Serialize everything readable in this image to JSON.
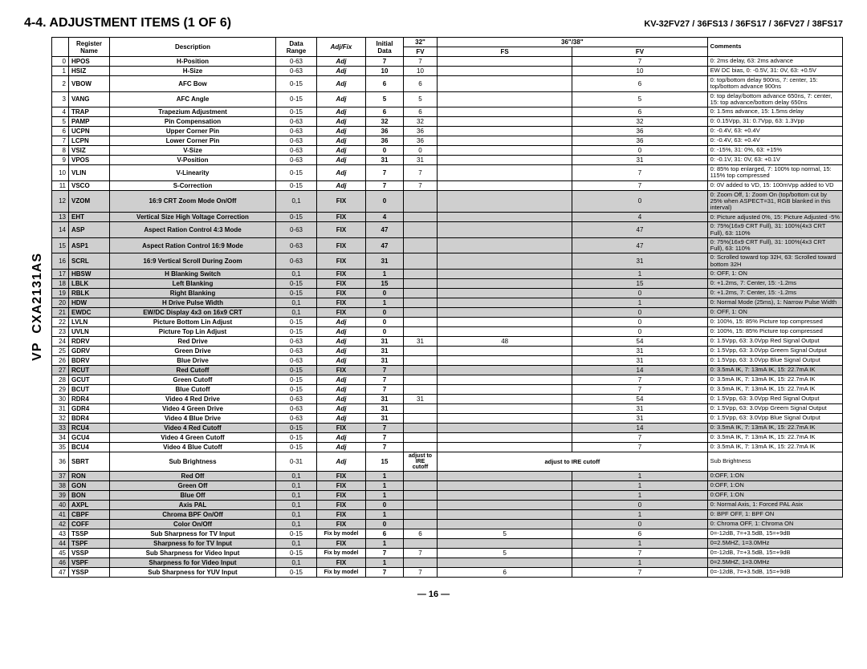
{
  "header": {
    "title": "4-4. ADJUSTMENT ITEMS (1 OF 6)",
    "models": "KV-32FV27 / 36FS13 / 36FS17 / 36FV27 / 38FS17"
  },
  "chip": {
    "top": "VP",
    "bottom": "CXA2131AS"
  },
  "columns": {
    "register": "Register Name",
    "description": "Description",
    "data_range": "Data Range",
    "adjfix": "Adj/Fix",
    "initial": "Initial Data",
    "c32": "32\"",
    "c3638": "36\"/38\"",
    "fv": "FV",
    "fs": "FS",
    "fv2": "FV",
    "comments": "Comments"
  },
  "rows": [
    {
      "i": "0",
      "r": "HPOS",
      "d": "H-Position",
      "rg": "0-63",
      "af": "Adj",
      "in": "7",
      "a": "7",
      "b": "",
      "c": "7",
      "cm": "0:  2ms delay,   63:  2ms advance"
    },
    {
      "i": "1",
      "r": "HSIZ",
      "d": "H-Size",
      "rg": "0-63",
      "af": "Adj",
      "in": "10",
      "a": "10",
      "b": "",
      "c": "10",
      "cm": "EW DC bias,  0:  -0.5V,   31:  0V,   63:  +0.5V"
    },
    {
      "i": "2",
      "r": "VBOW",
      "d": "AFC Bow",
      "rg": "0-15",
      "af": "Adj",
      "in": "6",
      "a": "6",
      "b": "",
      "c": "6",
      "cm": "0:  top/bottom delay 900ns,  7:  center,   15:  top/bottom advance 900ns"
    },
    {
      "i": "3",
      "r": "VANG",
      "d": "AFC Angle",
      "rg": "0-15",
      "af": "Adj",
      "in": "5",
      "a": "5",
      "b": "",
      "c": "5",
      "cm": "0:  top delay/bottom advance 650ns,   7: center,\n15:  top advance/bottom delay 650ns"
    },
    {
      "i": "4",
      "r": "TRAP",
      "d": "Trapezium Adjustment",
      "rg": "0-15",
      "af": "Adj",
      "in": "6",
      "a": "6",
      "b": "",
      "c": "6",
      "cm": "0:  1.5ms advance,  15:  1.5ms delay"
    },
    {
      "i": "5",
      "r": "PAMP",
      "d": "Pin Compensation",
      "rg": "0-63",
      "af": "Adj",
      "in": "32",
      "a": "32",
      "b": "",
      "c": "32",
      "cm": "0:  0.15Vpp,  31:  0.7Vpp,  63:  1.3Vpp"
    },
    {
      "i": "6",
      "r": "UCPN",
      "d": "Upper Corner Pin",
      "rg": "0-63",
      "af": "Adj",
      "in": "36",
      "a": "36",
      "b": "",
      "c": "36",
      "cm": "0:  -0.4V,  63:  +0.4V"
    },
    {
      "i": "7",
      "r": "LCPN",
      "d": "Lower Corner Pin",
      "rg": "0-63",
      "af": "Adj",
      "in": "36",
      "a": "36",
      "b": "",
      "c": "36",
      "cm": "0:  -0.4V,  63:  +0.4V"
    },
    {
      "i": "8",
      "r": "VSIZ",
      "d": "V-Size",
      "rg": "0-63",
      "af": "Adj",
      "in": "0",
      "a": "0",
      "b": "",
      "c": "0",
      "cm": "0:  -15%,   31:  0%,   63:  +15%"
    },
    {
      "i": "9",
      "r": "VPOS",
      "d": "V-Position",
      "rg": "0-63",
      "af": "Adj",
      "in": "31",
      "a": "31",
      "b": "",
      "c": "31",
      "cm": "0:  -0.1V,  31:  0V,  63:  +0.1V"
    },
    {
      "i": "10",
      "r": "VLIN",
      "d": "V-Linearity",
      "rg": "0-15",
      "af": "Adj",
      "in": "7",
      "a": "7",
      "b": "",
      "c": "7",
      "cm": "0:  85% top enlarged,  7:  100% top normal,  15:  115% top compressed"
    },
    {
      "i": "11",
      "r": "VSCO",
      "d": "S-Correction",
      "rg": "0-15",
      "af": "Adj",
      "in": "7",
      "a": "7",
      "b": "",
      "c": "7",
      "cm": "0:  0V added to VD,  15:   100mVpp added to VD"
    },
    {
      "i": "12",
      "r": "VZOM",
      "d": "16:9 CRT Zoom Mode On/Off",
      "rg": "0,1",
      "af": "FIX",
      "in": "0",
      "a": "",
      "b": "",
      "c": "0",
      "cm": "0:  Zoom Off,  1:  Zoom On\n(top/bottom cut by 25% when ASPECT=31, RGB blanked in this interval)",
      "sh": true
    },
    {
      "i": "13",
      "r": "EHT",
      "d": "Vertical Size High Voltage Correction",
      "rg": "0-15",
      "af": "FIX",
      "in": "4",
      "a": "",
      "b": "",
      "c": "4",
      "cm": "0:  Picture adjusted 0%,   15:  Picture Adjusted -5%",
      "sh": true
    },
    {
      "i": "14",
      "r": "ASP",
      "d": "Aspect Ration Control 4:3 Mode",
      "rg": "0-63",
      "af": "FIX",
      "in": "47",
      "a": "",
      "b": "",
      "c": "47",
      "cm": "0:  75%(16x9 CRT Full),  31:  100%(4x3 CRT Full),  63:  110%",
      "sh": true
    },
    {
      "i": "15",
      "r": "ASP1",
      "d": "Aspect Ration Control 16:9 Mode",
      "rg": "0-63",
      "af": "FIX",
      "in": "47",
      "a": "",
      "b": "",
      "c": "47",
      "cm": "0:  75%(16x9 CRT Full),  31:  100%(4x3 CRT Full),  63:  110%",
      "sh": true
    },
    {
      "i": "16",
      "r": "SCRL",
      "d": "16:9 Vertical Scroll During Zoom",
      "rg": "0-63",
      "af": "FIX",
      "in": "31",
      "a": "",
      "b": "",
      "c": "31",
      "cm": "0:  Scrolled toward top 32H,  63:  Scrolled toward bottom 32H",
      "sh": true
    },
    {
      "i": "17",
      "r": "HBSW",
      "d": "H Blanking Switch",
      "rg": "0,1",
      "af": "FIX",
      "in": "1",
      "a": "",
      "b": "",
      "c": "1",
      "cm": "0:  OFF,  1:  ON",
      "sh": true
    },
    {
      "i": "18",
      "r": "LBLK",
      "d": "Left Blanking",
      "rg": "0-15",
      "af": "FIX",
      "in": "15",
      "a": "",
      "b": "",
      "c": "15",
      "cm": "0:  +1.2ms,  7:  Center,  15:  -1.2ms",
      "sh": true
    },
    {
      "i": "19",
      "r": "RBLK",
      "d": "Right Blanking",
      "rg": "0-15",
      "af": "FIX",
      "in": "0",
      "a": "",
      "b": "",
      "c": "0",
      "cm": "0:  +1.2ms,  7:  Center,  15:  -1.2ms",
      "sh": true
    },
    {
      "i": "20",
      "r": "HDW",
      "d": "H Drive Pulse Width",
      "rg": "0,1",
      "af": "FIX",
      "in": "1",
      "a": "",
      "b": "",
      "c": "1",
      "cm": "0:  Normal Mode (25ms),  1:  Narrow Pulse Width",
      "sh": true
    },
    {
      "i": "21",
      "r": "EWDC",
      "d": "EW/DC Display 4x3 on 16x9 CRT",
      "rg": "0,1",
      "af": "FIX",
      "in": "0",
      "a": "",
      "b": "",
      "c": "0",
      "cm": "0:  OFF,  1:  ON",
      "sh": true
    },
    {
      "i": "22",
      "r": "LVLN",
      "d": "Picture Bottom Lin Adjust",
      "rg": "0-15",
      "af": "Adj",
      "in": "0",
      "a": "",
      "b": "",
      "c": "0",
      "cm": "0:  100%,   15:  85% Picture top compressed"
    },
    {
      "i": "23",
      "r": "UVLN",
      "d": "Picture Top Lin Adjust",
      "rg": "0-15",
      "af": "Adj",
      "in": "0",
      "a": "",
      "b": "",
      "c": "0",
      "cm": "0:  100%,  15:  85% Picture top compressed"
    },
    {
      "i": "24",
      "r": "RDRV",
      "d": "Red Drive",
      "rg": "0-63",
      "af": "Adj",
      "in": "31",
      "a": "31",
      "b": "48",
      "c": "54",
      "cm": "0:  1.5Vpp,  63:  3.0Vpp Red Signal Output"
    },
    {
      "i": "25",
      "r": "GDRV",
      "d": "Green Drive",
      "rg": "0-63",
      "af": "Adj",
      "in": "31",
      "a": "",
      "b": "",
      "c": "31",
      "cm": "0:  1.5Vpp,  63:  3.0Vpp Greem Signal Output"
    },
    {
      "i": "26",
      "r": "BDRV",
      "d": "Blue Drive",
      "rg": "0-63",
      "af": "Adj",
      "in": "31",
      "a": "",
      "b": "",
      "c": "31",
      "cm": "0:  1.5Vpp,  63:  3.0Vpp Blue Signal Output"
    },
    {
      "i": "27",
      "r": "RCUT",
      "d": "Red Cutoff",
      "rg": "0-15",
      "af": "FIX",
      "in": "7",
      "a": "",
      "b": "",
      "c": "14",
      "cm": "0:  3.5mA IK,  7:  13mA IK,  15:  22.7mA IK",
      "sh": true
    },
    {
      "i": "28",
      "r": "GCUT",
      "d": "Green Cutoff",
      "rg": "0-15",
      "af": "Adj",
      "in": "7",
      "a": "",
      "b": "",
      "c": "7",
      "cm": "0:  3.5mA IK,  7:  13mA IK,  15:  22.7mA IK"
    },
    {
      "i": "29",
      "r": "BCUT",
      "d": "Blue Cutoff",
      "rg": "0-15",
      "af": "Adj",
      "in": "7",
      "a": "",
      "b": "",
      "c": "7",
      "cm": "0:  3.5mA IK,  7:  13mA IK,  15:  22.7mA IK"
    },
    {
      "i": "30",
      "r": "RDR4",
      "d": "Video 4 Red Drive",
      "rg": "0-63",
      "af": "Adj",
      "in": "31",
      "a": "31",
      "b": "",
      "c": "54",
      "cm": "0:  1.5Vpp,  63:  3.0Vpp Red Signal Output"
    },
    {
      "i": "31",
      "r": "GDR4",
      "d": "Video 4 Green Drive",
      "rg": "0-63",
      "af": "Adj",
      "in": "31",
      "a": "",
      "b": "",
      "c": "31",
      "cm": "0:  1.5Vpp,  63:  3.0Vpp Greem Signal Output"
    },
    {
      "i": "32",
      "r": "BDR4",
      "d": "Video 4 Blue Drive",
      "rg": "0-63",
      "af": "Adj",
      "in": "31",
      "a": "",
      "b": "",
      "c": "31",
      "cm": "0:  1.5Vpp,  63:  3.0Vpp Blue Signal Output"
    },
    {
      "i": "33",
      "r": "RCU4",
      "d": "Video 4 Red Cutoff",
      "rg": "0-15",
      "af": "FIX",
      "in": "7",
      "a": "",
      "b": "",
      "c": "14",
      "cm": "0:  3.5mA IK,  7:  13mA IK,  15:  22.7mA IK",
      "sh": true
    },
    {
      "i": "34",
      "r": "GCU4",
      "d": "Video 4 Green Cutoff",
      "rg": "0-15",
      "af": "Adj",
      "in": "7",
      "a": "",
      "b": "",
      "c": "7",
      "cm": "0:  3.5mA IK,  7:  13mA IK,  15:  22.7mA IK"
    },
    {
      "i": "35",
      "r": "BCU4",
      "d": "Video 4 Blue Cutoff",
      "rg": "0-15",
      "af": "Adj",
      "in": "7",
      "a": "",
      "b": "",
      "c": "7",
      "cm": "0:  3.5mA IK,  7:  13mA IK,  15:  22.7mA IK"
    },
    {
      "i": "36",
      "r": "SBRT",
      "d": "Sub Brightness",
      "rg": "0-31",
      "af": "Adj",
      "in": "15",
      "a": "adjust to IRE cutoff",
      "b": "adjust to IRE cutoff",
      "c": "",
      "cm": "Sub Brightness",
      "special": true
    },
    {
      "i": "37",
      "r": "RON",
      "d": "Red Off",
      "rg": "0,1",
      "af": "FIX",
      "in": "1",
      "a": "",
      "b": "",
      "c": "1",
      "cm": "0:OFF, 1:ON",
      "sh": true
    },
    {
      "i": "38",
      "r": "GON",
      "d": "Green Off",
      "rg": "0,1",
      "af": "FIX",
      "in": "1",
      "a": "",
      "b": "",
      "c": "1",
      "cm": "0:OFF, 1:ON",
      "sh": true
    },
    {
      "i": "39",
      "r": "BON",
      "d": "Blue Off",
      "rg": "0,1",
      "af": "FIX",
      "in": "1",
      "a": "",
      "b": "",
      "c": "1",
      "cm": "0:OFF, 1:ON",
      "sh": true
    },
    {
      "i": "40",
      "r": "AXPL",
      "d": "Axis PAL",
      "rg": "0,1",
      "af": "FIX",
      "in": "0",
      "a": "",
      "b": "",
      "c": "0",
      "cm": "0:  Normal Axis,  1:  Forced PAL Asix",
      "sh": true
    },
    {
      "i": "41",
      "r": "CBPF",
      "d": "Chroma BPF On/Off",
      "rg": "0,1",
      "af": "FIX",
      "in": "1",
      "a": "",
      "b": "",
      "c": "1",
      "cm": "0:  BPF OFF,  1:  BPF ON",
      "sh": true
    },
    {
      "i": "42",
      "r": "COFF",
      "d": "Color On/Off",
      "rg": "0,1",
      "af": "FIX",
      "in": "0",
      "a": "",
      "b": "",
      "c": "0",
      "cm": "0:  Chroma OFF,  1:  Chroma ON",
      "sh": true
    },
    {
      "i": "43",
      "r": "TSSP",
      "d": "Sub Sharpness for TV Input",
      "rg": "0-15",
      "af": "Fix by model",
      "in": "6",
      "a": "6",
      "b": "5",
      "c": "6",
      "cm": "0=-12dB,  7=+3.5dB,  15=+9dB"
    },
    {
      "i": "44",
      "r": "TSPF",
      "d": "Sharpness fo for TV Input",
      "rg": "0,1",
      "af": "FIX",
      "in": "1",
      "a": "",
      "b": "",
      "c": "1",
      "cm": "0=2.5MHZ,  1=3.0MHz",
      "sh": true
    },
    {
      "i": "45",
      "r": "VSSP",
      "d": "Sub Sharpness for Video Input",
      "rg": "0-15",
      "af": "Fix by model",
      "in": "7",
      "a": "7",
      "b": "5",
      "c": "7",
      "cm": "0=-12dB,  7=+3.5dB,  15=+9dB"
    },
    {
      "i": "46",
      "r": "VSPF",
      "d": "Sharpness fo for Video Input",
      "rg": "0,1",
      "af": "FIX",
      "in": "1",
      "a": "",
      "b": "",
      "c": "1",
      "cm": "0=2.5MHZ,  1=3.0MHz",
      "sh": true
    },
    {
      "i": "47",
      "r": "YSSP",
      "d": "Sub Sharpness for YUV Input",
      "rg": "0-15",
      "af": "Fix by model",
      "in": "7",
      "a": "7",
      "b": "6",
      "c": "7",
      "cm": "0=-12dB,  7=+3.5dB,  15=+9dB"
    }
  ],
  "sbrt_special": {
    "line1": "adjust to",
    "line2": "IRE",
    "line3": "cutoff",
    "right": "adjust to IRE cutoff"
  },
  "footer": "— 16 —"
}
